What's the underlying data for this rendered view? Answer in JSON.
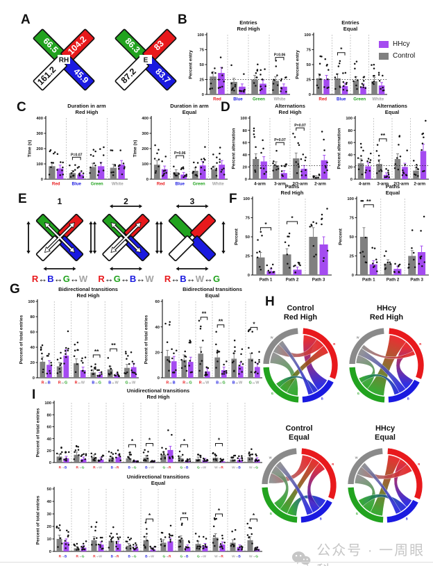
{
  "colors": {
    "hhcy": "#A44BF0",
    "control": "#808080",
    "red": "#E8191C",
    "green": "#22A31F",
    "blue": "#1A1AE0",
    "white_arm": "#FFFFFF",
    "gray_label": "#A3A3A3"
  },
  "legend": {
    "items": [
      {
        "label": "HHcy",
        "color_key": "hhcy"
      },
      {
        "label": "Control",
        "color_key": "control"
      }
    ]
  },
  "panels": {
    "A": {
      "label": "A",
      "mazes": [
        {
          "center_label": "RH",
          "values": {
            "green": "66.5",
            "red": "104.2",
            "white": "161.2",
            "blue": "45.9"
          }
        },
        {
          "center_label": "E",
          "values": {
            "green": "86.3",
            "red": "83",
            "white": "87.2",
            "blue": "83.7"
          }
        }
      ]
    },
    "B": {
      "label": "B"
    },
    "C": {
      "label": "C"
    },
    "D": {
      "label": "D"
    },
    "E": {
      "label": "E",
      "mazes": [
        {
          "number": "1",
          "path": "R↔B↔G↔W",
          "center_arrows": true,
          "top_arrow": false
        },
        {
          "number": "2",
          "path": "R↔G↔B↔W",
          "center_arrows": true,
          "top_arrow": true
        },
        {
          "number": "3",
          "path": "R↔B↔W↔G",
          "center_arrows": false,
          "top_arrow": true
        }
      ]
    },
    "F": {
      "label": "F"
    },
    "G": {
      "label": "G"
    },
    "H": {
      "label": "H",
      "diagrams": [
        {
          "id": "h1",
          "group": "Control",
          "condition": "Red High",
          "ribbons": [
            [
              "R",
              "B",
              26
            ],
            [
              "R",
              "W",
              18
            ],
            [
              "R",
              "G",
              16
            ],
            [
              "G",
              "W",
              22
            ],
            [
              "B",
              "G",
              10
            ],
            [
              "B",
              "W",
              10
            ]
          ]
        },
        {
          "id": "h2",
          "group": "HHcy",
          "condition": "Red High",
          "ribbons": [
            [
              "R",
              "G",
              34
            ],
            [
              "R",
              "B",
              22
            ],
            [
              "G",
              "W",
              16
            ],
            [
              "B",
              "W",
              14
            ],
            [
              "B",
              "G",
              10
            ],
            [
              "R",
              "W",
              8
            ]
          ]
        },
        {
          "id": "h3",
          "group": "Control",
          "condition": "Equal",
          "ribbons": [
            [
              "R",
              "W",
              20
            ],
            [
              "B",
              "G",
              18
            ],
            [
              "R",
              "G",
              16
            ],
            [
              "R",
              "B",
              16
            ],
            [
              "G",
              "W",
              16
            ],
            [
              "B",
              "W",
              12
            ]
          ]
        },
        {
          "id": "h4",
          "group": "HHcy",
          "condition": "Equal",
          "ribbons": [
            [
              "R",
              "G",
              24
            ],
            [
              "G",
              "W",
              18
            ],
            [
              "R",
              "B",
              16
            ],
            [
              "R",
              "W",
              16
            ],
            [
              "B",
              "G",
              14
            ],
            [
              "B",
              "W",
              10
            ]
          ]
        }
      ],
      "arm_labels": [
        "R",
        "B",
        "G",
        "W"
      ]
    },
    "I": {
      "label": "I"
    }
  },
  "chart_data": [
    {
      "id": "b1",
      "type": "bar",
      "title_lines": [
        "Entries",
        "Red High"
      ],
      "ylabel": "Percent entry",
      "ylim": [
        0,
        100
      ],
      "yticks": [
        0,
        25,
        50,
        75,
        100
      ],
      "refline": 25,
      "categories": [
        "Red",
        "Blue",
        "Green",
        "White"
      ],
      "cat_style": "word",
      "series": [
        {
          "name": "Control",
          "color": "control",
          "values": [
            30,
            21,
            25,
            23
          ]
        },
        {
          "name": "HHcy",
          "color": "hhcy",
          "values": [
            36,
            13,
            18,
            13
          ]
        }
      ],
      "sig": [
        {
          "cat": "White",
          "text": "P=0.06"
        }
      ]
    },
    {
      "id": "b2",
      "type": "bar",
      "title_lines": [
        "Entries",
        "Equal"
      ],
      "ylabel": "Percent entry",
      "ylim": [
        0,
        100
      ],
      "yticks": [
        0,
        25,
        50,
        75,
        100
      ],
      "refline": 25,
      "categories": [
        "Red",
        "Blue",
        "Green",
        "White"
      ],
      "cat_style": "word",
      "series": [
        {
          "name": "Control",
          "color": "control",
          "values": [
            27,
            27,
            23,
            22
          ]
        },
        {
          "name": "HHcy",
          "color": "hhcy",
          "values": [
            25,
            14,
            13,
            15
          ]
        }
      ],
      "sig": [
        {
          "cat": "Blue",
          "text": "*"
        }
      ]
    },
    {
      "id": "c1",
      "type": "bar",
      "title_lines": [
        "Duration in arm",
        "Red High"
      ],
      "ylabel": "Time (s)",
      "ylim": [
        0,
        400
      ],
      "yticks": [
        0,
        100,
        200,
        300,
        400
      ],
      "refline": null,
      "categories": [
        "Red",
        "Blue",
        "Green",
        "White"
      ],
      "cat_style": "word",
      "series": [
        {
          "name": "Control",
          "color": "control",
          "values": [
            85,
            40,
            80,
            75
          ]
        },
        {
          "name": "HHcy",
          "color": "hhcy",
          "values": [
            70,
            30,
            85,
            95
          ]
        }
      ],
      "sig": [
        {
          "cat": "Blue",
          "text": "P=0.07"
        }
      ]
    },
    {
      "id": "c2",
      "type": "bar",
      "title_lines": [
        "Duration in arm",
        "Equal"
      ],
      "ylabel": "Time (s)",
      "ylim": [
        0,
        400
      ],
      "yticks": [
        0,
        100,
        200,
        300,
        400
      ],
      "refline": null,
      "categories": [
        "Red",
        "Blue",
        "Green",
        "White"
      ],
      "cat_style": "word",
      "series": [
        {
          "name": "Control",
          "color": "control",
          "values": [
            95,
            45,
            55,
            65
          ]
        },
        {
          "name": "HHcy",
          "color": "hhcy",
          "values": [
            65,
            30,
            90,
            95
          ]
        }
      ],
      "sig": [
        {
          "cat": "Blue",
          "text": "P=0.06"
        }
      ]
    },
    {
      "id": "d1",
      "type": "bar",
      "title_lines": [
        "Alternations",
        "Red High"
      ],
      "ylabel": "Percent alternation",
      "ylim": [
        0,
        100
      ],
      "yticks": [
        0,
        20,
        40,
        60,
        80,
        100
      ],
      "refline": 22,
      "categories": [
        "4-arm",
        "3-arm",
        "2/3-arm",
        "2-arm"
      ],
      "cat_style": "plain",
      "series": [
        {
          "name": "Control",
          "color": "control",
          "values": [
            33,
            22,
            34,
            3
          ]
        },
        {
          "name": "HHcy",
          "color": "hhcy",
          "values": [
            29,
            10,
            17,
            31
          ]
        }
      ],
      "sig": [
        {
          "cat": "3-arm",
          "text": "P=0.07"
        },
        {
          "cat": "2/3-arm",
          "text": "P=0.07"
        }
      ]
    },
    {
      "id": "d2",
      "type": "bar",
      "title_lines": [
        "Alternations",
        "Equal"
      ],
      "ylabel": "Percent alternation",
      "ylim": [
        0,
        100
      ],
      "yticks": [
        0,
        20,
        40,
        60,
        80,
        100
      ],
      "refline": 22,
      "categories": [
        "4-arm",
        "3-arm",
        "2/3-arm",
        "2-arm"
      ],
      "cat_style": "plain",
      "series": [
        {
          "name": "Control",
          "color": "control",
          "values": [
            26,
            25,
            33,
            14
          ]
        },
        {
          "name": "HHcy",
          "color": "hhcy",
          "values": [
            21,
            7,
            20,
            46
          ]
        }
      ],
      "sig": [
        {
          "cat": "3-arm",
          "text": "**"
        }
      ]
    },
    {
      "id": "f1",
      "type": "bar",
      "title_lines": [
        "Paths",
        "Red High"
      ],
      "ylabel": "Percent",
      "ylim": [
        0,
        100
      ],
      "yticks": [
        0,
        25,
        50,
        75,
        100
      ],
      "refline": null,
      "categories": [
        "Path 1",
        "Path 2",
        "Path 3"
      ],
      "cat_style": "plain",
      "series": [
        {
          "name": "Control",
          "color": "control",
          "values": [
            23,
            27,
            50
          ]
        },
        {
          "name": "HHcy",
          "color": "hhcy",
          "values": [
            5,
            7,
            40
          ]
        }
      ],
      "sig": [
        {
          "cat": "Path 1",
          "text": "*"
        },
        {
          "cat": "Path 2",
          "text": "*"
        }
      ]
    },
    {
      "id": "f2",
      "type": "bar",
      "title_lines": [
        "Paths",
        "Equal"
      ],
      "ylabel": "Percent",
      "ylim": [
        0,
        100
      ],
      "yticks": [
        0,
        25,
        50,
        75,
        100
      ],
      "refline": null,
      "categories": [
        "Path 1",
        "Path 2",
        "Path 3"
      ],
      "cat_style": "plain",
      "series": [
        {
          "name": "Control",
          "color": "control",
          "values": [
            50,
            15,
            25
          ]
        },
        {
          "name": "HHcy",
          "color": "hhcy",
          "values": [
            14,
            8,
            30
          ]
        }
      ],
      "sig": [
        {
          "cat": "Path 1",
          "text": "**"
        }
      ]
    },
    {
      "id": "g1",
      "type": "bar",
      "title_lines": [
        "Bidirectional transitions",
        "Red High"
      ],
      "ylabel": "Percent of total entries",
      "ylim": [
        0,
        100
      ],
      "yticks": [
        0,
        20,
        40,
        60,
        80,
        100
      ],
      "refline": null,
      "categories": [
        "R↔B",
        "R↔G",
        "R↔W",
        "B↔G",
        "B↔W",
        "G↔W"
      ],
      "cat_style": "letters",
      "series": [
        {
          "name": "Control",
          "color": "control",
          "values": [
            21,
            15,
            19,
            7,
            11,
            13
          ]
        },
        {
          "name": "HHcy",
          "color": "hhcy",
          "values": [
            17,
            29,
            10,
            4,
            3,
            14
          ]
        }
      ],
      "sig": [
        {
          "cat": "B↔G",
          "text": "**"
        },
        {
          "cat": "B↔W",
          "text": "**"
        }
      ]
    },
    {
      "id": "g2",
      "type": "bar",
      "title_lines": [
        "Bidirectional transitions",
        "Equal"
      ],
      "ylabel": "Percent of total entries",
      "ylim": [
        0,
        60
      ],
      "yticks": [
        0,
        20,
        40,
        60
      ],
      "refline": null,
      "categories": [
        "R↔B",
        "R↔G",
        "R↔W",
        "B↔G",
        "B↔W",
        "G↔W"
      ],
      "cat_style": "letters",
      "series": [
        {
          "name": "Control",
          "color": "control",
          "values": [
            17,
            14,
            19,
            16,
            15,
            15
          ]
        },
        {
          "name": "HHcy",
          "color": "hhcy",
          "values": [
            13,
            12.5,
            5,
            6,
            9,
            8.5
          ]
        }
      ],
      "sig": [
        {
          "cat": "R↔W",
          "text": "**"
        },
        {
          "cat": "B↔G",
          "text": "**"
        },
        {
          "cat": "G↔W",
          "text": "*"
        }
      ]
    },
    {
      "id": "i1",
      "type": "bar",
      "title_lines": [
        "Unidirectional transitions",
        "Red High"
      ],
      "ylabel": "Percent of total entries",
      "ylim": [
        0,
        100
      ],
      "yticks": [
        0,
        20,
        40,
        60,
        80,
        100
      ],
      "refline": null,
      "categories": [
        "R→B",
        "R→G",
        "R→W",
        "B→R",
        "B→G",
        "B→W",
        "G→R",
        "G→B",
        "G→W",
        "W→R",
        "W→B",
        "W→G"
      ],
      "cat_style": "letters",
      "series": [
        {
          "name": "Control",
          "color": "control",
          "values": [
            10,
            13,
            9,
            7,
            7,
            8,
            13,
            7,
            6,
            8,
            5,
            9
          ]
        },
        {
          "name": "HHcy",
          "color": "hhcy",
          "values": [
            7,
            6,
            5,
            9,
            1,
            1,
            21,
            2,
            4,
            2,
            4,
            5
          ]
        }
      ],
      "sig": [
        {
          "cat": "B→G",
          "text": "*"
        },
        {
          "cat": "B→W",
          "text": "*"
        },
        {
          "cat": "G→B",
          "text": "*"
        },
        {
          "cat": "W→R",
          "text": "*"
        }
      ]
    },
    {
      "id": "i2",
      "type": "bar",
      "title_lines": [
        "Unidirectional transitions",
        "Equal"
      ],
      "ylabel": "Percent of total entries",
      "ylim": [
        0,
        50
      ],
      "yticks": [
        0,
        10,
        20,
        30,
        40,
        50
      ],
      "refline": null,
      "categories": [
        "R→B",
        "R→G",
        "R→W",
        "B→R",
        "B→G",
        "B→W",
        "G→R",
        "G→B",
        "G→W",
        "W→R",
        "W→B",
        "W→G"
      ],
      "cat_style": "letters",
      "series": [
        {
          "name": "Control",
          "color": "control",
          "values": [
            10,
            2.5,
            9,
            8.5,
            4.5,
            9,
            7,
            9.5,
            6,
            11,
            7,
            9
          ]
        },
        {
          "name": "HHcy",
          "color": "hhcy",
          "values": [
            7.5,
            3,
            5.5,
            6,
            2.5,
            1.5,
            8,
            3.5,
            4.5,
            5.5,
            3.5,
            2
          ]
        }
      ],
      "sig": [
        {
          "cat": "B→W",
          "text": "*"
        },
        {
          "cat": "G→B",
          "text": "**"
        },
        {
          "cat": "W→R",
          "text": "*"
        },
        {
          "cat": "W→G",
          "text": "*"
        }
      ]
    }
  ],
  "watermark": {
    "text": "公众号 · 一周眼科"
  }
}
